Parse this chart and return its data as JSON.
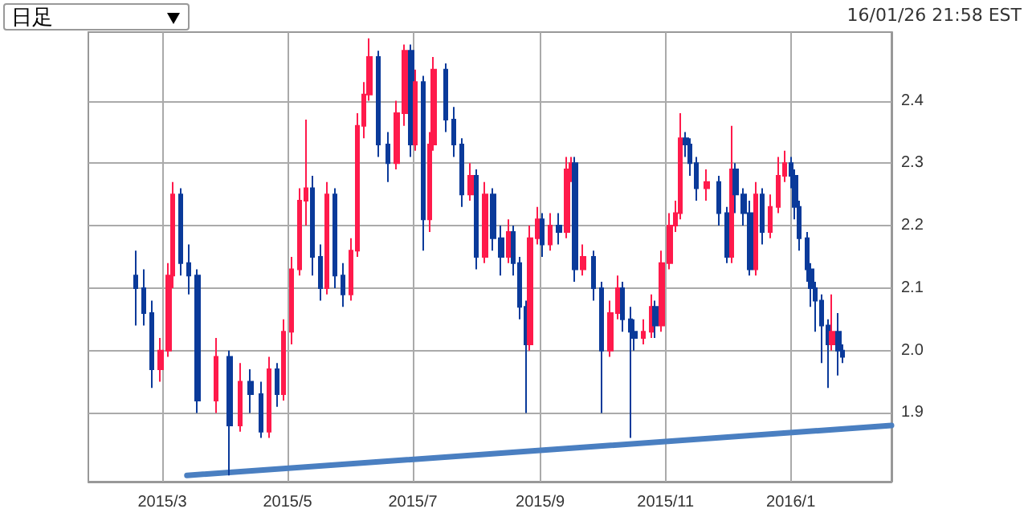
{
  "chart_data": {
    "type": "candlestick",
    "annotations": [
      "日足",
      "16/01/26 21:58 EST"
    ],
    "x": [
      "2015-02-16",
      "2015-02-20",
      "2015-02-24",
      "2015-02-28",
      "2015-03-04",
      "2015-03-06",
      "2015-03-10",
      "2015-03-14",
      "2015-03-18",
      "2015-03-27",
      "2015-04-03",
      "2015-04-08",
      "2015-04-13",
      "2015-04-18",
      "2015-04-22",
      "2015-04-26",
      "2015-04-29",
      "2015-05-03",
      "2015-05-07",
      "2015-05-10",
      "2015-05-13",
      "2015-05-17",
      "2015-05-20",
      "2015-05-24",
      "2015-05-28",
      "2015-06-01",
      "2015-06-04",
      "2015-06-07",
      "2015-06-10",
      "2015-06-14",
      "2015-06-19",
      "2015-06-23",
      "2015-06-27",
      "2015-06-30",
      "2015-07-02",
      "2015-07-06",
      "2015-07-09",
      "2015-07-11",
      "2015-07-17",
      "2015-07-21",
      "2015-07-25",
      "2015-07-29",
      "2015-08-01",
      "2015-08-05",
      "2015-08-09",
      "2015-08-13",
      "2015-08-17",
      "2015-08-19",
      "2015-08-22",
      "2015-08-25",
      "2015-08-27",
      "2015-08-31",
      "2015-09-02",
      "2015-09-06",
      "2015-09-10",
      "2015-09-14",
      "2015-09-16",
      "2015-09-18",
      "2015-09-22",
      "2015-09-27",
      "2015-10-01",
      "2015-10-05",
      "2015-10-09",
      "2015-10-11",
      "2015-10-15",
      "2015-10-17",
      "2015-10-21",
      "2015-10-25",
      "2015-10-27",
      "2015-10-30",
      "2015-11-03",
      "2015-11-06",
      "2015-11-08",
      "2015-11-11",
      "2015-11-13",
      "2015-11-16",
      "2015-11-21",
      "2015-11-27",
      "2015-12-01",
      "2015-12-03",
      "2015-12-05",
      "2015-12-09",
      "2015-12-12",
      "2015-12-15",
      "2015-12-18",
      "2015-12-22",
      "2015-12-26",
      "2015-12-29",
      "2016-01-01",
      "2016-01-03",
      "2016-01-05",
      "2016-01-09",
      "2016-01-11",
      "2016-01-13",
      "2016-01-16",
      "2016-01-19",
      "2016-01-21",
      "2016-01-24",
      "2016-01-26"
    ],
    "ohlc": [
      [
        2.12,
        2.16,
        2.04,
        2.1
      ],
      [
        2.1,
        2.13,
        2.04,
        2.06
      ],
      [
        2.06,
        2.08,
        1.94,
        1.97
      ],
      [
        1.97,
        2.02,
        1.95,
        2.0
      ],
      [
        2.0,
        2.14,
        1.99,
        2.12
      ],
      [
        2.12,
        2.27,
        2.1,
        2.25
      ],
      [
        2.25,
        2.26,
        2.12,
        2.14
      ],
      [
        2.14,
        2.17,
        2.09,
        2.12
      ],
      [
        2.12,
        2.13,
        1.9,
        1.92
      ],
      [
        1.92,
        2.02,
        1.9,
        1.99
      ],
      [
        1.99,
        2.0,
        1.8,
        1.88
      ],
      [
        1.88,
        1.98,
        1.87,
        1.95
      ],
      [
        1.95,
        1.97,
        1.9,
        1.93
      ],
      [
        1.93,
        1.95,
        1.86,
        1.87
      ],
      [
        1.87,
        1.99,
        1.86,
        1.97
      ],
      [
        1.97,
        1.98,
        1.91,
        1.93
      ],
      [
        1.93,
        2.05,
        1.92,
        2.03
      ],
      [
        2.03,
        2.15,
        2.01,
        2.13
      ],
      [
        2.13,
        2.26,
        2.12,
        2.24
      ],
      [
        2.24,
        2.37,
        2.2,
        2.26
      ],
      [
        2.26,
        2.28,
        2.12,
        2.15
      ],
      [
        2.15,
        2.17,
        2.08,
        2.1
      ],
      [
        2.1,
        2.27,
        2.09,
        2.25
      ],
      [
        2.25,
        2.26,
        2.1,
        2.12
      ],
      [
        2.12,
        2.14,
        2.07,
        2.09
      ],
      [
        2.09,
        2.18,
        2.08,
        2.16
      ],
      [
        2.16,
        2.38,
        2.15,
        2.36
      ],
      [
        2.36,
        2.43,
        2.34,
        2.41
      ],
      [
        2.41,
        2.5,
        2.4,
        2.47
      ],
      [
        2.47,
        2.48,
        2.31,
        2.33
      ],
      [
        2.33,
        2.35,
        2.27,
        2.3
      ],
      [
        2.3,
        2.4,
        2.29,
        2.38
      ],
      [
        2.38,
        2.49,
        2.36,
        2.48
      ],
      [
        2.48,
        2.49,
        2.31,
        2.33
      ],
      [
        2.33,
        2.45,
        2.32,
        2.43
      ],
      [
        2.43,
        2.44,
        2.16,
        2.21
      ],
      [
        2.21,
        2.35,
        2.19,
        2.33
      ],
      [
        2.33,
        2.47,
        2.32,
        2.45
      ],
      [
        2.45,
        2.46,
        2.35,
        2.37
      ],
      [
        2.37,
        2.39,
        2.31,
        2.33
      ],
      [
        2.33,
        2.34,
        2.23,
        2.25
      ],
      [
        2.25,
        2.3,
        2.24,
        2.28
      ],
      [
        2.28,
        2.29,
        2.13,
        2.15
      ],
      [
        2.15,
        2.27,
        2.14,
        2.25
      ],
      [
        2.25,
        2.26,
        2.16,
        2.18
      ],
      [
        2.18,
        2.2,
        2.12,
        2.15
      ],
      [
        2.15,
        2.21,
        2.14,
        2.19
      ],
      [
        2.19,
        2.2,
        2.12,
        2.14
      ],
      [
        2.14,
        2.15,
        2.05,
        2.07
      ],
      [
        2.07,
        2.08,
        1.9,
        2.01
      ],
      [
        2.01,
        2.2,
        2.0,
        2.18
      ],
      [
        2.18,
        2.23,
        2.17,
        2.21
      ],
      [
        2.21,
        2.22,
        2.15,
        2.17
      ],
      [
        2.17,
        2.22,
        2.16,
        2.2
      ],
      [
        2.2,
        2.22,
        2.17,
        2.19
      ],
      [
        2.19,
        2.31,
        2.18,
        2.29
      ],
      [
        2.29,
        2.31,
        2.27,
        2.3
      ],
      [
        2.3,
        2.31,
        2.11,
        2.13
      ],
      [
        2.13,
        2.17,
        2.12,
        2.15
      ],
      [
        2.15,
        2.16,
        2.08,
        2.1
      ],
      [
        2.1,
        2.11,
        1.9,
        2.0
      ],
      [
        2.0,
        2.08,
        1.99,
        2.06
      ],
      [
        2.06,
        2.12,
        2.05,
        2.1
      ],
      [
        2.1,
        2.11,
        2.03,
        2.05
      ],
      [
        2.05,
        2.07,
        1.86,
        2.03
      ],
      [
        2.03,
        2.05,
        2.0,
        2.02
      ],
      [
        2.02,
        2.05,
        2.01,
        2.03
      ],
      [
        2.03,
        2.09,
        2.02,
        2.07
      ],
      [
        2.07,
        2.08,
        2.02,
        2.04
      ],
      [
        2.04,
        2.16,
        2.03,
        2.14
      ],
      [
        2.14,
        2.22,
        2.13,
        2.2
      ],
      [
        2.2,
        2.24,
        2.19,
        2.22
      ],
      [
        2.22,
        2.38,
        2.21,
        2.34
      ],
      [
        2.34,
        2.35,
        2.31,
        2.33
      ],
      [
        2.33,
        2.34,
        2.28,
        2.3
      ],
      [
        2.3,
        2.31,
        2.24,
        2.26
      ],
      [
        2.26,
        2.29,
        2.24,
        2.27
      ],
      [
        2.27,
        2.28,
        2.2,
        2.22
      ],
      [
        2.22,
        2.23,
        2.14,
        2.15
      ],
      [
        2.15,
        2.36,
        2.14,
        2.29
      ],
      [
        2.29,
        2.3,
        2.22,
        2.25
      ],
      [
        2.25,
        2.26,
        2.2,
        2.22
      ],
      [
        2.22,
        2.24,
        2.12,
        2.13
      ],
      [
        2.13,
        2.27,
        2.12,
        2.25
      ],
      [
        2.25,
        2.26,
        2.17,
        2.19
      ],
      [
        2.19,
        2.25,
        2.18,
        2.23
      ],
      [
        2.23,
        2.31,
        2.22,
        2.28
      ],
      [
        2.28,
        2.32,
        2.27,
        2.3
      ],
      [
        2.3,
        2.31,
        2.26,
        2.28
      ],
      [
        2.28,
        2.29,
        2.21,
        2.23
      ],
      [
        2.23,
        2.24,
        2.16,
        2.18
      ],
      [
        2.18,
        2.19,
        2.11,
        2.13
      ],
      [
        2.13,
        2.14,
        2.07,
        2.1
      ],
      [
        2.1,
        2.11,
        2.03,
        2.08
      ],
      [
        2.08,
        2.09,
        1.98,
        2.04
      ],
      [
        2.04,
        2.05,
        1.94,
        2.01
      ],
      [
        2.01,
        2.09,
        2.0,
        2.03
      ],
      [
        2.03,
        2.06,
        1.96,
        2.0
      ],
      [
        2.0,
        2.01,
        1.98,
        1.99
      ]
    ],
    "colors": [
      "#0a3a9a",
      "#0a3a9a",
      "#0a3a9a",
      "#ff1a4b",
      "#ff1a4b",
      "#ff1a4b",
      "#0a3a9a",
      "#0a3a9a",
      "#0a3a9a",
      "#ff1a4b",
      "#0a3a9a",
      "#ff1a4b",
      "#0a3a9a",
      "#0a3a9a",
      "#ff1a4b",
      "#0a3a9a",
      "#ff1a4b",
      "#ff1a4b",
      "#ff1a4b",
      "#ff1a4b",
      "#0a3a9a",
      "#0a3a9a",
      "#ff1a4b",
      "#0a3a9a",
      "#0a3a9a",
      "#ff1a4b",
      "#ff1a4b",
      "#ff1a4b",
      "#ff1a4b",
      "#0a3a9a",
      "#0a3a9a",
      "#ff1a4b",
      "#ff1a4b",
      "#0a3a9a",
      "#ff1a4b",
      "#0a3a9a",
      "#ff1a4b",
      "#ff1a4b",
      "#0a3a9a",
      "#0a3a9a",
      "#0a3a9a",
      "#ff1a4b",
      "#0a3a9a",
      "#ff1a4b",
      "#0a3a9a",
      "#0a3a9a",
      "#ff1a4b",
      "#0a3a9a",
      "#0a3a9a",
      "#0a3a9a",
      "#ff1a4b",
      "#ff1a4b",
      "#0a3a9a",
      "#ff1a4b",
      "#0a3a9a",
      "#ff1a4b",
      "#ff1a4b",
      "#0a3a9a",
      "#ff1a4b",
      "#0a3a9a",
      "#0a3a9a",
      "#ff1a4b",
      "#ff1a4b",
      "#0a3a9a",
      "#0a3a9a",
      "#0a3a9a",
      "#ff1a4b",
      "#ff1a4b",
      "#0a3a9a",
      "#ff1a4b",
      "#ff1a4b",
      "#ff1a4b",
      "#ff1a4b",
      "#0a3a9a",
      "#0a3a9a",
      "#0a3a9a",
      "#ff1a4b",
      "#0a3a9a",
      "#0a3a9a",
      "#ff1a4b",
      "#0a3a9a",
      "#0a3a9a",
      "#0a3a9a",
      "#ff1a4b",
      "#0a3a9a",
      "#ff1a4b",
      "#ff1a4b",
      "#ff1a4b",
      "#0a3a9a",
      "#0a3a9a",
      "#0a3a9a",
      "#0a3a9a",
      "#0a3a9a",
      "#0a3a9a",
      "#0a3a9a",
      "#0a3a9a",
      "#ff1a4b",
      "#0a3a9a",
      "#0a3a9a"
    ],
    "series": [
      {
        "type": "line",
        "x": [
          "2015-03-13",
          "2016-02-19"
        ],
        "values": [
          1.8,
          1.88
        ],
        "color": "#4a7fc1"
      }
    ],
    "xlim": [
      "2015-01-24",
      "2016-02-19"
    ],
    "xticks": [
      {
        "value": "2015-03-01",
        "label": "2015/3"
      },
      {
        "value": "2015-05-01",
        "label": "2015/5"
      },
      {
        "value": "2015-07-01",
        "label": "2015/7"
      },
      {
        "value": "2015-09-01",
        "label": "2015/9"
      },
      {
        "value": "2015-11-01",
        "label": "2015/11"
      },
      {
        "value": "2016-01-01",
        "label": "2016/1"
      }
    ],
    "ylim": [
      1.79,
      2.51
    ],
    "yticks": [
      {
        "value": 1.9,
        "label": "1.9"
      },
      {
        "value": 2.0,
        "label": "2.0"
      },
      {
        "value": 2.1,
        "label": "2.1"
      },
      {
        "value": 2.2,
        "label": "2.2"
      },
      {
        "value": 2.3,
        "label": "2.3"
      },
      {
        "value": 2.4,
        "label": "2.4"
      }
    ],
    "grid": true
  }
}
